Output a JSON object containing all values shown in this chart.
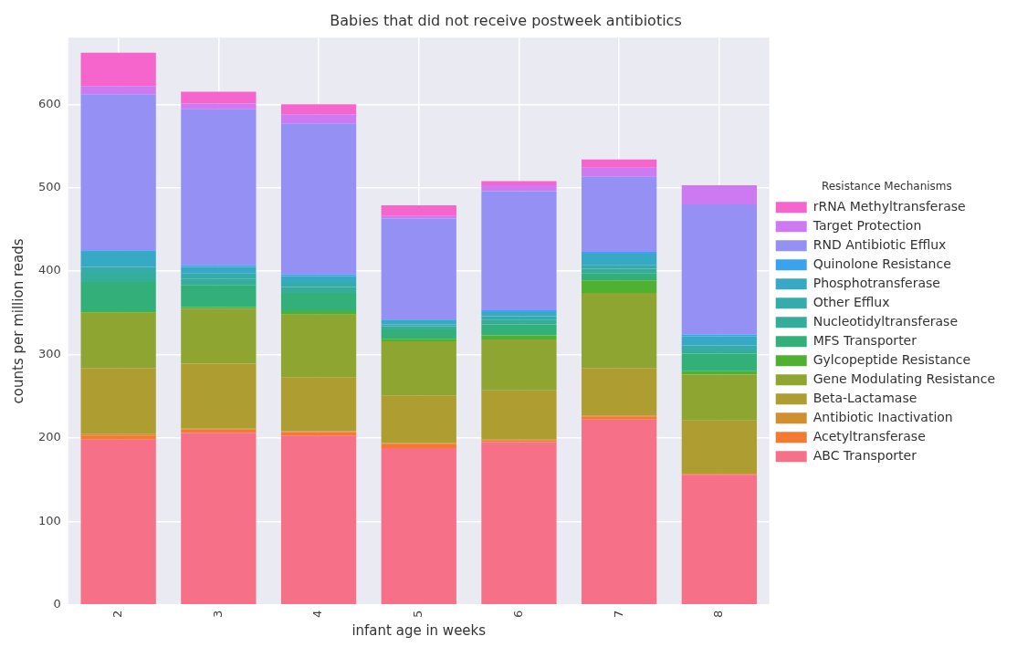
{
  "chart_data": {
    "type": "bar",
    "stacked": true,
    "title": "Babies that did not receive postweek antibiotics",
    "xlabel": "infant age in weeks",
    "ylabel": "counts per million reads",
    "legend_title": "Resistance Mechanisms",
    "legend": "right",
    "grid": true,
    "categories": [
      "2",
      "3",
      "4",
      "5",
      "6",
      "7",
      "8"
    ],
    "ylim": [
      0,
      680
    ],
    "yticks": [
      0,
      100,
      200,
      300,
      400,
      500,
      600
    ],
    "series": [
      {
        "name": "ABC Transporter",
        "color": "#f67088",
        "values": [
          198,
          206,
          203,
          188,
          195,
          222,
          156
        ]
      },
      {
        "name": "Acetyltransferase",
        "color": "#f47a32",
        "values": [
          5,
          4,
          4,
          5,
          2,
          4,
          1
        ]
      },
      {
        "name": "Antibiotic Inactivation",
        "color": "#cf9032",
        "values": [
          2,
          1,
          1,
          1,
          1,
          1,
          0
        ]
      },
      {
        "name": "Beta-Lactamase",
        "color": "#ae9d31",
        "values": [
          79,
          78,
          65,
          57,
          59,
          57,
          64
        ]
      },
      {
        "name": "Gene Modulating Resistance",
        "color": "#8ea531",
        "values": [
          66,
          66,
          75,
          65,
          61,
          90,
          55
        ]
      },
      {
        "name": "Gylcopeptide Resistance",
        "color": "#50b131",
        "values": [
          2,
          2,
          4,
          3,
          5,
          15,
          4
        ]
      },
      {
        "name": "MFS Transporter",
        "color": "#33b07a",
        "values": [
          35,
          26,
          22,
          11,
          13,
          8,
          21
        ]
      },
      {
        "name": "Nucleotidyltransferase",
        "color": "#35ad9b",
        "values": [
          11,
          8,
          7,
          4,
          6,
          6,
          4
        ]
      },
      {
        "name": "Other Efflux",
        "color": "#36abab",
        "values": [
          7,
          6,
          6,
          2,
          4,
          4,
          6
        ]
      },
      {
        "name": "Phosphotransferase",
        "color": "#38a9c5",
        "values": [
          18,
          8,
          7,
          5,
          5,
          14,
          11
        ]
      },
      {
        "name": "Quinolone Resistance",
        "color": "#3ba3ec",
        "values": [
          2,
          2,
          2,
          1,
          2,
          2,
          2
        ]
      },
      {
        "name": "RND Antibiotic Efflux",
        "color": "#9591f4",
        "values": [
          187,
          187,
          181,
          121,
          143,
          90,
          156
        ]
      },
      {
        "name": "Target Protection",
        "color": "#cc79f2",
        "values": [
          10,
          7,
          11,
          3,
          7,
          11,
          23
        ]
      },
      {
        "name": "rRNA Methyltransferase",
        "color": "#f565cc",
        "values": [
          40,
          14,
          12,
          13,
          5,
          10,
          0
        ]
      }
    ]
  }
}
